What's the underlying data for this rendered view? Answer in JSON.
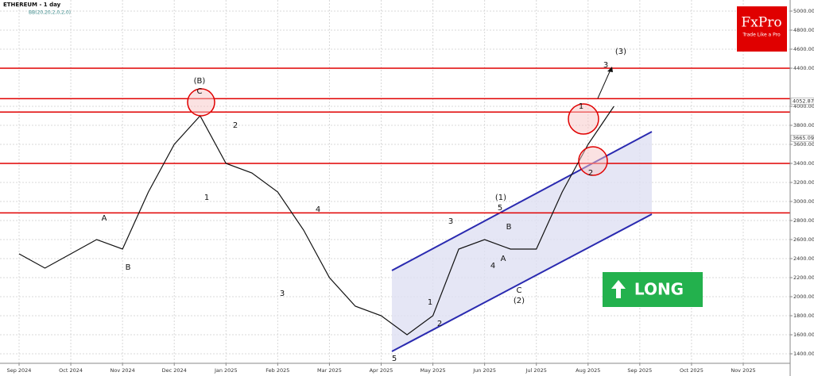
{
  "chart_data": {
    "type": "line",
    "title": "ETHEREUM - 1 day",
    "subtitle": "BB(20,20,2,0,2,0)",
    "categories": [
      "Sep 2024",
      null,
      "Oct 2024",
      null,
      "Nov 2024",
      null,
      "Dec 2024",
      null,
      "Jan 2025",
      null,
      "Feb 2025",
      null,
      "Mar 2025",
      null,
      "Apr 2025",
      null,
      "May 2025",
      null,
      "Jun 2025",
      null,
      "Jul 2025",
      null,
      "Aug 2025",
      null,
      "Sep 2025",
      null,
      "Oct 2025",
      null,
      "Nov 2025"
    ],
    "series": [
      {
        "color": "#111111",
        "values": [
          2450,
          2300,
          2450,
          2600,
          2500,
          3100,
          3600,
          3900,
          3400,
          3300,
          3100,
          2700,
          2200,
          1900,
          1800,
          1600,
          1800,
          2500,
          2600,
          2500,
          2500,
          3100,
          3600,
          4000,
          null,
          null,
          null,
          null,
          null
        ]
      }
    ],
    "ylim": [
      1400,
      5000
    ],
    "yticks": [
      {
        "value": 5000,
        "label": "5000.00"
      },
      {
        "value": 4800,
        "label": "4800.00"
      },
      {
        "value": 4600,
        "label": "4600.00"
      },
      {
        "value": 4400,
        "label": "4400.00"
      },
      {
        "value": 4000,
        "label": "4000.00"
      },
      {
        "value": 3800,
        "label": "3800.00"
      },
      {
        "value": 3600,
        "label": "3600.00"
      },
      {
        "value": 3400,
        "label": "3400.00"
      },
      {
        "value": 3200,
        "label": "3200.00"
      },
      {
        "value": 3000,
        "label": "3000.00"
      },
      {
        "value": 2800,
        "label": "2800.00"
      },
      {
        "value": 2600,
        "label": "2600.00"
      },
      {
        "value": 2400,
        "label": "2400.00"
      },
      {
        "value": 2200,
        "label": "2200.00"
      },
      {
        "value": 2000,
        "label": "2000.00"
      },
      {
        "value": 1800,
        "label": "1800.00"
      },
      {
        "value": 1600,
        "label": "1600.00"
      },
      {
        "value": 1400,
        "label": "1400.00"
      }
    ],
    "price_labels": [
      {
        "value": 4052.87,
        "label": "4052.87"
      },
      {
        "value": 3665.09,
        "label": "3665.09"
      }
    ],
    "levels": [
      4400,
      4080,
      3940,
      3400,
      2880
    ],
    "level_color": "#e00000",
    "grid": true,
    "annotations": [
      "(B)",
      "C",
      "2",
      "1",
      "A",
      "B",
      "3",
      "4",
      "3",
      "(1)",
      "5",
      "B",
      "4",
      "A",
      "C",
      "(2)",
      "1",
      "2",
      "5",
      "3",
      "(3)",
      "1",
      "2"
    ],
    "brand": {
      "name": "FxPro",
      "tagline": "Trade Like a Pro"
    },
    "signal": "LONG"
  }
}
